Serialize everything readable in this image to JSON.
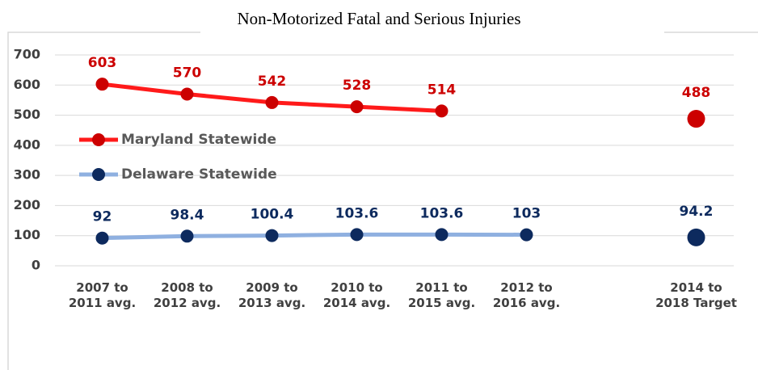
{
  "chart_data": {
    "type": "line",
    "title": "Non-Motorized Fatal and Serious Injuries",
    "categories": [
      "2007 to\n2011 avg.",
      "2008 to\n2012 avg.",
      "2009 to\n2013 avg.",
      "2010 to\n2014 avg.",
      "2011 to\n2015 avg.",
      "2012 to\n2016 avg.",
      null,
      "2014 to\n2018 Target"
    ],
    "series": [
      {
        "name": "Maryland Statewide",
        "color": "#cc0000",
        "line_color": "#ff1a1a",
        "values": [
          603,
          570,
          542,
          528,
          514,
          null,
          null,
          488
        ]
      },
      {
        "name": "Delaware Statewide",
        "color": "#0d2a5e",
        "line_color": "#8fb0e0",
        "values": [
          92,
          98.4,
          100.4,
          103.6,
          103.6,
          103,
          null,
          94.2
        ]
      }
    ],
    "ylim": [
      0,
      700
    ],
    "yticks": [
      0,
      100,
      200,
      300,
      400,
      500,
      600,
      700
    ],
    "grid": true,
    "legend": "left",
    "data_labels": true
  }
}
